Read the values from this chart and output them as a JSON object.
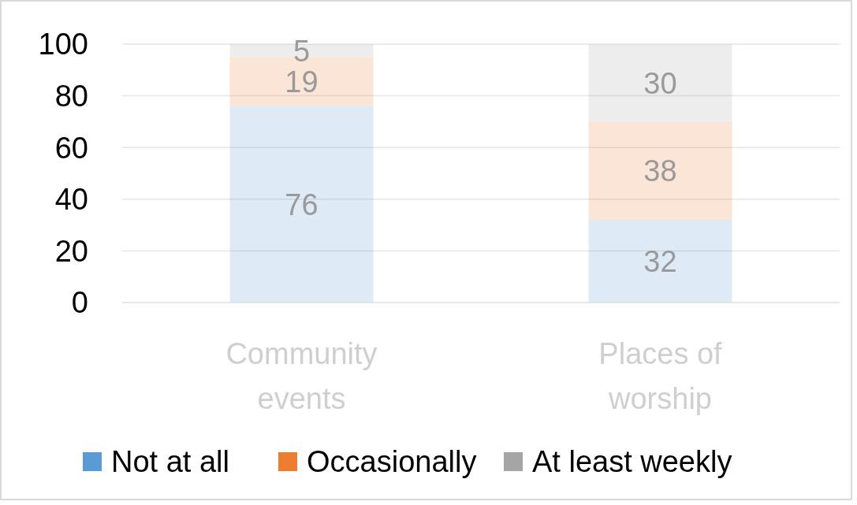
{
  "chart_data": {
    "type": "bar",
    "stacked": true,
    "categories": [
      "Community\nevents",
      "Places of\nworship"
    ],
    "series": [
      {
        "name": "Not at all",
        "color": "#5b9bd5",
        "values": [
          76,
          32
        ]
      },
      {
        "name": "Occasionally",
        "color": "#ed7d31",
        "values": [
          19,
          38
        ]
      },
      {
        "name": "At least weekly",
        "color": "#a5a5a5",
        "values": [
          5,
          30
        ]
      }
    ],
    "ylim": [
      0,
      100
    ],
    "yticks": [
      0,
      20,
      40,
      60,
      80,
      100
    ],
    "grid": "y",
    "data_labels": true,
    "legend": "bottom"
  }
}
